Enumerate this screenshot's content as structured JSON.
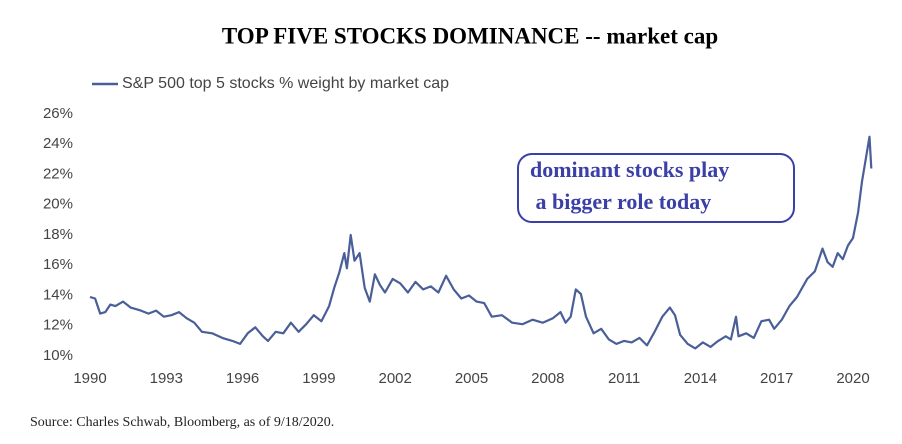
{
  "chart_data": {
    "type": "line",
    "title": "TOP FIVE STOCKS DOMINANCE -- market cap",
    "annotation": [
      "dominant stocks play",
      " a bigger role today"
    ],
    "source": "Source: Charles Schwab, Bloomberg, as of 9/18/2020.",
    "x": [
      1990,
      1990.2,
      1990.4,
      1990.6,
      1990.8,
      1991,
      1991.3,
      1991.6,
      1992,
      1992.3,
      1992.6,
      1992.9,
      1993.2,
      1993.5,
      1993.8,
      1994.1,
      1994.4,
      1994.8,
      1995.2,
      1995.6,
      1995.9,
      1996.2,
      1996.5,
      1996.8,
      1997,
      1997.3,
      1997.6,
      1997.9,
      1998.2,
      1998.5,
      1998.8,
      1999.1,
      1999.4,
      1999.6,
      1999.8,
      2000,
      2000.1,
      2000.25,
      2000.4,
      2000.6,
      2000.8,
      2001,
      2001.2,
      2001.4,
      2001.6,
      2001.9,
      2002.2,
      2002.5,
      2002.8,
      2003.1,
      2003.4,
      2003.7,
      2004,
      2004.3,
      2004.6,
      2004.9,
      2005.2,
      2005.5,
      2005.8,
      2006.2,
      2006.6,
      2007,
      2007.4,
      2007.8,
      2008.2,
      2008.5,
      2008.7,
      2008.9,
      2009.1,
      2009.3,
      2009.5,
      2009.8,
      2010.1,
      2010.4,
      2010.7,
      2011,
      2011.3,
      2011.6,
      2011.9,
      2012.2,
      2012.5,
      2012.8,
      2013,
      2013.2,
      2013.5,
      2013.8,
      2014.1,
      2014.4,
      2014.7,
      2015,
      2015.2,
      2015.4,
      2015.5,
      2015.8,
      2016.1,
      2016.4,
      2016.7,
      2016.9,
      2017.2,
      2017.5,
      2017.8,
      2018,
      2018.2,
      2018.5,
      2018.8,
      2019,
      2019.2,
      2019.4,
      2019.6,
      2019.8,
      2020,
      2020.2,
      2020.35,
      2020.5,
      2020.65,
      2020.72
    ],
    "series": [
      {
        "name": "S&P 500 top 5 stocks % weight by market cap",
        "color": "#4a5e98",
        "values": [
          13.9,
          13.8,
          12.8,
          12.9,
          13.4,
          13.3,
          13.6,
          13.2,
          13.0,
          12.8,
          13.0,
          12.6,
          12.7,
          12.9,
          12.5,
          12.2,
          11.6,
          11.5,
          11.2,
          11.0,
          10.8,
          11.5,
          11.9,
          11.3,
          11.0,
          11.6,
          11.5,
          12.2,
          11.6,
          12.1,
          12.7,
          12.3,
          13.3,
          14.5,
          15.5,
          16.8,
          15.8,
          18.0,
          16.3,
          16.8,
          14.5,
          13.6,
          15.4,
          14.7,
          14.2,
          15.1,
          14.8,
          14.2,
          14.9,
          14.4,
          14.6,
          14.2,
          15.3,
          14.4,
          13.8,
          14.0,
          13.6,
          13.5,
          12.6,
          12.7,
          12.2,
          12.1,
          12.4,
          12.2,
          12.5,
          12.9,
          12.2,
          12.6,
          14.4,
          14.1,
          12.6,
          11.5,
          11.8,
          11.1,
          10.8,
          11.0,
          10.9,
          11.2,
          10.7,
          11.6,
          12.6,
          13.2,
          12.7,
          11.4,
          10.8,
          10.5,
          10.9,
          10.6,
          11.0,
          11.3,
          11.1,
          12.6,
          11.3,
          11.5,
          11.2,
          12.3,
          12.4,
          11.8,
          12.4,
          13.3,
          13.9,
          14.5,
          15.1,
          15.6,
          17.1,
          16.2,
          15.9,
          16.8,
          16.4,
          17.3,
          17.8,
          19.5,
          21.5,
          23.0,
          24.5,
          22.4
        ]
      }
    ],
    "xlim": [
      1990,
      2021.2
    ],
    "xticks": [
      1990,
      1993,
      1996,
      1999,
      2002,
      2005,
      2008,
      2011,
      2014,
      2017,
      2020
    ],
    "ylim": [
      10,
      26
    ],
    "yticks": [
      {
        "value": 10,
        "label": "10%"
      },
      {
        "value": 12,
        "label": "12%"
      },
      {
        "value": 14,
        "label": "14%"
      },
      {
        "value": 16,
        "label": "16%"
      },
      {
        "value": 18,
        "label": "18%"
      },
      {
        "value": 20,
        "label": "20%"
      },
      {
        "value": 22,
        "label": "22%"
      },
      {
        "value": 24,
        "label": "24%"
      },
      {
        "value": 26,
        "label": "26%"
      }
    ],
    "grid": false,
    "legend": "top-left"
  }
}
